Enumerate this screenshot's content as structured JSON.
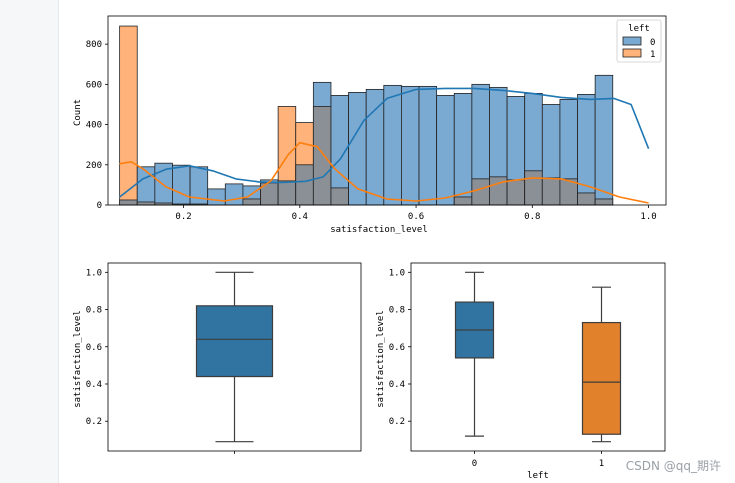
{
  "colors": {
    "blue": "#1f77b4",
    "orange": "#ff7f0e",
    "blue_fill": "#7aa9d2",
    "orange_fill": "#ffb27a",
    "gray_fill": "#8a9096"
  },
  "watermark": "CSDN @qq_期许",
  "chart_data": [
    {
      "type": "histogram",
      "xlabel": "satisfaction_level",
      "ylabel": "Count",
      "xlim": [
        0.07,
        1.03
      ],
      "ylim": [
        0,
        940
      ],
      "xticks": [
        0.2,
        0.4,
        0.6,
        0.8,
        1.0
      ],
      "xtick_labels": [
        "0.2",
        "0.4",
        "0.6",
        "0.8",
        "1.0"
      ],
      "yticks": [
        0,
        200,
        400,
        600,
        800
      ],
      "ytick_labels": [
        "0",
        "200",
        "400",
        "600",
        "800"
      ],
      "bin_start": 0.09,
      "bin_width": 0.0303,
      "legend": {
        "title": "left",
        "position": "top-right",
        "entries": [
          "0",
          "1"
        ]
      },
      "series": [
        {
          "name": "0",
          "values": [
            25,
            190,
            208,
            198,
            190,
            80,
            105,
            95,
            125,
            120,
            200,
            610,
            545,
            560,
            575,
            595,
            590,
            590,
            545,
            555,
            600,
            585,
            540,
            555,
            500,
            525,
            550,
            645
          ],
          "kde": [
            [
              0.09,
              40
            ],
            [
              0.13,
              130
            ],
            [
              0.17,
              178
            ],
            [
              0.21,
              195
            ],
            [
              0.25,
              170
            ],
            [
              0.29,
              130
            ],
            [
              0.33,
              115
            ],
            [
              0.37,
              112
            ],
            [
              0.41,
              118
            ],
            [
              0.44,
              140
            ],
            [
              0.47,
              230
            ],
            [
              0.51,
              420
            ],
            [
              0.55,
              530
            ],
            [
              0.6,
              575
            ],
            [
              0.65,
              580
            ],
            [
              0.7,
              580
            ],
            [
              0.75,
              570
            ],
            [
              0.8,
              555
            ],
            [
              0.85,
              535
            ],
            [
              0.9,
              525
            ],
            [
              0.94,
              530
            ],
            [
              0.97,
              500
            ],
            [
              1.0,
              280
            ]
          ]
        },
        {
          "name": "1",
          "values": [
            890,
            15,
            10,
            5,
            5,
            0,
            0,
            30,
            110,
            490,
            410,
            490,
            85,
            0,
            0,
            0,
            0,
            0,
            0,
            40,
            130,
            140,
            125,
            170,
            135,
            130,
            60,
            30
          ],
          "kde": [
            [
              0.09,
              205
            ],
            [
              0.11,
              215
            ],
            [
              0.13,
              180
            ],
            [
              0.17,
              90
            ],
            [
              0.21,
              40
            ],
            [
              0.27,
              20
            ],
            [
              0.31,
              40
            ],
            [
              0.35,
              120
            ],
            [
              0.38,
              250
            ],
            [
              0.4,
              310
            ],
            [
              0.43,
              290
            ],
            [
              0.46,
              180
            ],
            [
              0.5,
              80
            ],
            [
              0.55,
              30
            ],
            [
              0.6,
              20
            ],
            [
              0.65,
              35
            ],
            [
              0.7,
              70
            ],
            [
              0.75,
              115
            ],
            [
              0.8,
              135
            ],
            [
              0.85,
              130
            ],
            [
              0.9,
              90
            ],
            [
              0.95,
              40
            ],
            [
              1.0,
              10
            ]
          ]
        }
      ]
    },
    {
      "type": "box",
      "ylabel": "satisfaction_level",
      "ylim": [
        0.04,
        1.05
      ],
      "yticks": [
        0.2,
        0.4,
        0.6,
        0.8,
        1.0
      ],
      "ytick_labels": [
        "0.2",
        "0.4",
        "0.6",
        "0.8",
        "1.0"
      ],
      "boxes": [
        {
          "label": "",
          "min": 0.09,
          "q1": 0.44,
          "median": 0.64,
          "q3": 0.82,
          "max": 1.0,
          "color": "#3274a1"
        }
      ]
    },
    {
      "type": "box",
      "xlabel": "left",
      "ylabel": "satisfaction_level",
      "ylim": [
        0.04,
        1.05
      ],
      "yticks": [
        0.2,
        0.4,
        0.6,
        0.8,
        1.0
      ],
      "ytick_labels": [
        "0.2",
        "0.4",
        "0.6",
        "0.8",
        "1.0"
      ],
      "boxes": [
        {
          "label": "0",
          "min": 0.12,
          "q1": 0.54,
          "median": 0.69,
          "q3": 0.84,
          "max": 1.0,
          "color": "#3274a1"
        },
        {
          "label": "1",
          "min": 0.09,
          "q1": 0.13,
          "median": 0.41,
          "q3": 0.73,
          "max": 0.92,
          "color": "#e1812c"
        }
      ]
    }
  ]
}
